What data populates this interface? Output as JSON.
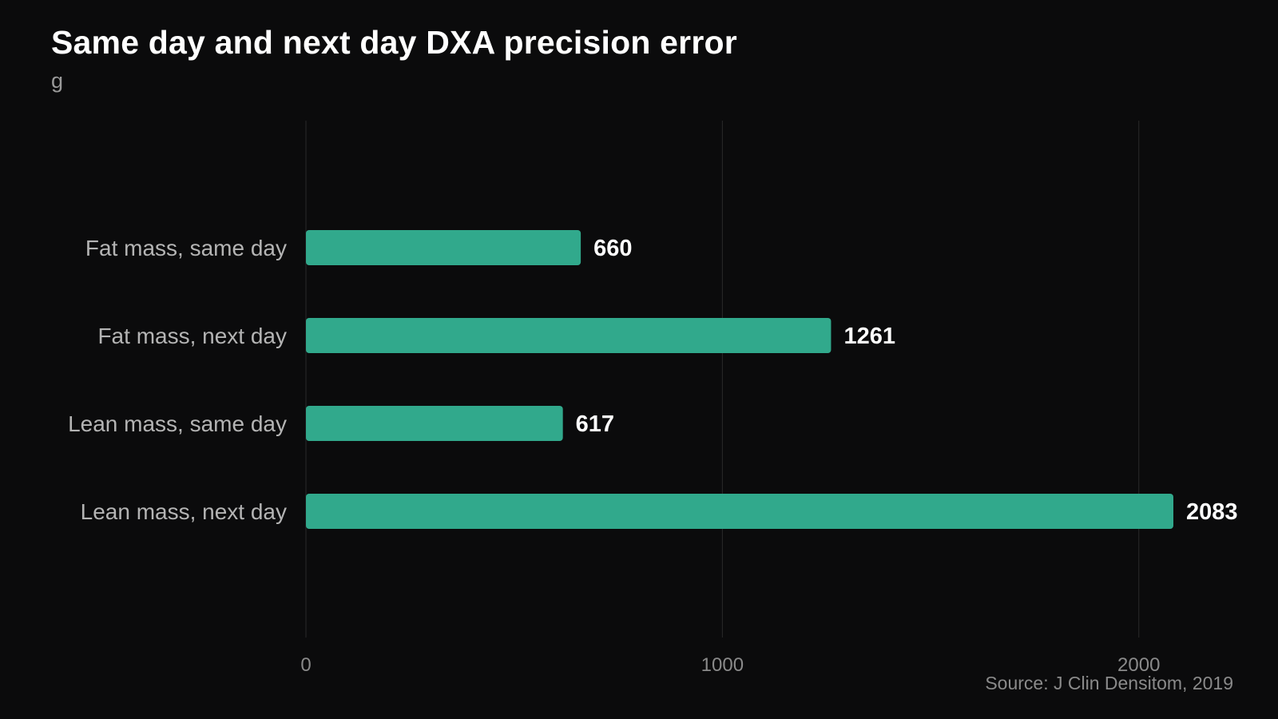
{
  "title": "Same day and next day DXA precision error",
  "subtitle": "g",
  "source": "Source: J Clin Densitom, 2019",
  "colors": {
    "background": "#0b0b0c",
    "bar": "#31a98c",
    "gridline": "#2a2a2a",
    "category_label": "#b4b4b4",
    "value_label": "#ffffff",
    "tick_label": "#8a8a8a"
  },
  "chart_data": {
    "type": "bar",
    "orientation": "horizontal",
    "title": "Same day and next day DXA precision error",
    "subtitle": "g",
    "categories": [
      "Fat mass, same day",
      "Fat mass, next day",
      "Lean mass, same day",
      "Lean mass, next day"
    ],
    "values": [
      660,
      1261,
      617,
      2083
    ],
    "data_labels": [
      "660",
      "1261",
      "617",
      "2083"
    ],
    "xlim": [
      0,
      2083
    ],
    "x_ticks": [
      0,
      1000,
      2000
    ],
    "x_tick_labels": [
      "0",
      "1000",
      "2000"
    ],
    "grid": "vertical",
    "legend": "none"
  }
}
